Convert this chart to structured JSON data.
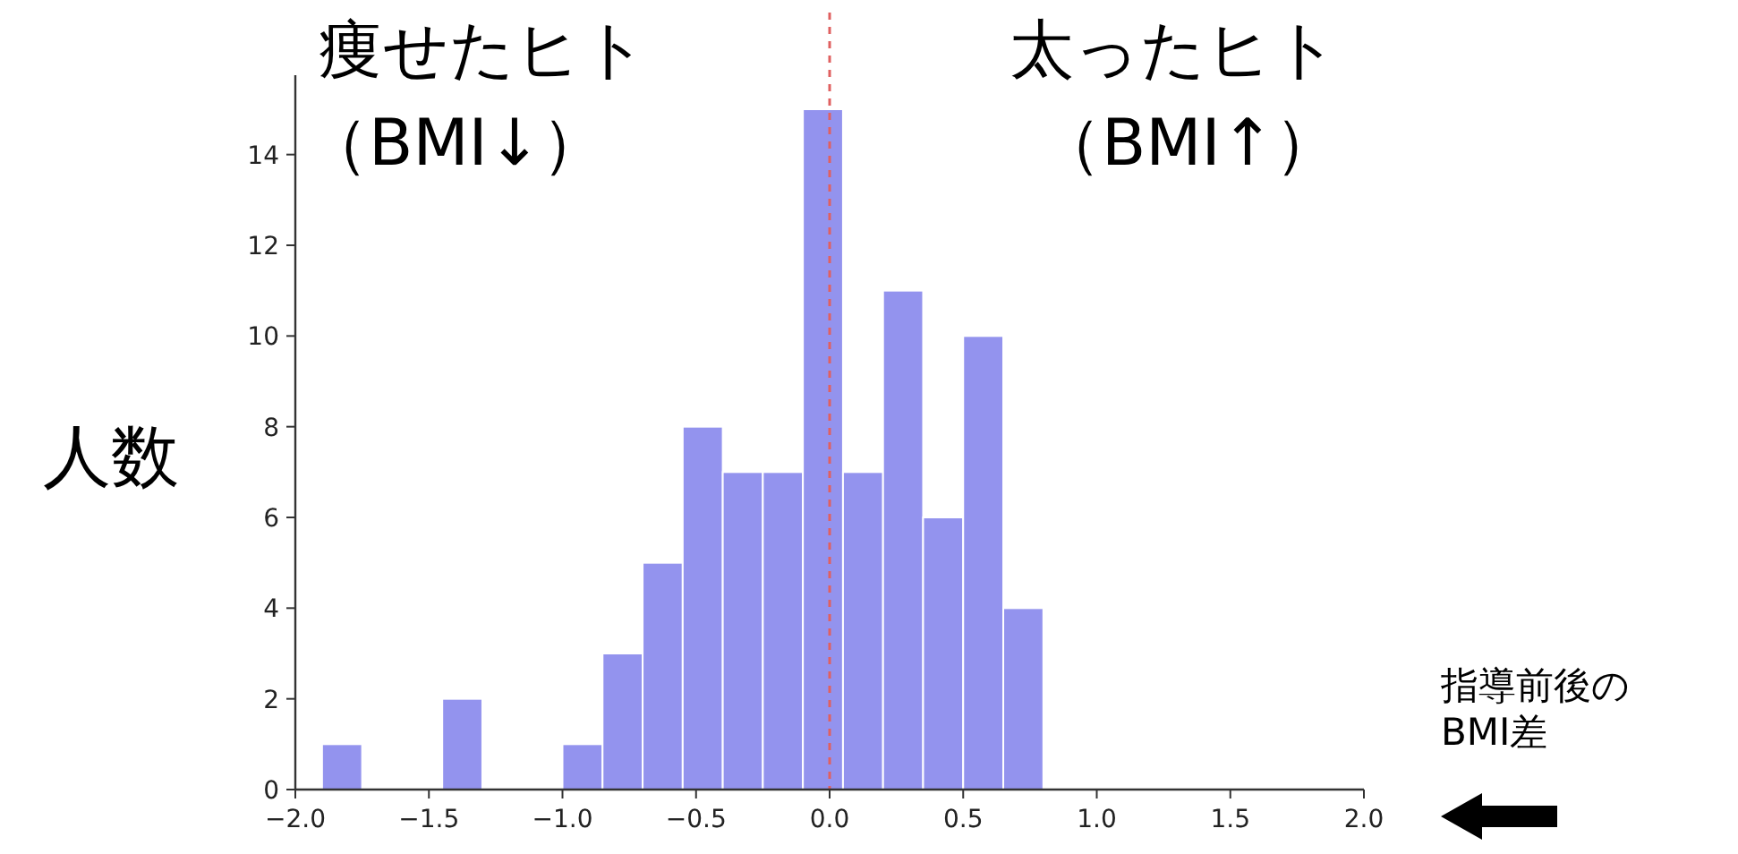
{
  "chart_data": {
    "type": "histogram",
    "xlabel": "指導前後のBMI差",
    "ylabel": "人数",
    "annotations": [
      "痩せたヒト",
      "（BMI↓）",
      "太ったヒト",
      "（BMI↑）"
    ],
    "bins": [
      -1.9,
      -1.75,
      -1.6,
      -1.45,
      -1.3,
      -1.15,
      -1.0,
      -0.85,
      -0.7,
      -0.55,
      -0.4,
      -0.25,
      -0.1,
      0.05,
      0.2,
      0.35,
      0.5,
      0.65,
      0.8
    ],
    "values": [
      1,
      0,
      0,
      2,
      0,
      0,
      1,
      3,
      5,
      8,
      7,
      7,
      15,
      7,
      11,
      6,
      10,
      4
    ],
    "color": "#9393ee",
    "xlim": [
      -2.0,
      2.0
    ],
    "ylim": [
      0,
      15.75
    ],
    "xticks": [
      {
        "value": -2.0,
        "label": "−2.0"
      },
      {
        "value": -1.5,
        "label": "−1.5"
      },
      {
        "value": -1.0,
        "label": "−1.0"
      },
      {
        "value": -0.5,
        "label": "−0.5"
      },
      {
        "value": 0,
        "label": "0.0"
      },
      {
        "value": 0.5,
        "label": "0.5"
      },
      {
        "value": 1.0,
        "label": "1.0"
      },
      {
        "value": 1.5,
        "label": "1.5"
      },
      {
        "value": 2.0,
        "label": "2.0"
      }
    ],
    "yticks": [
      0,
      2,
      4,
      6,
      8,
      10,
      12,
      14
    ],
    "ref_lines": [
      {
        "axis": "x",
        "value": 0,
        "color": "#e06060",
        "line_style": "dashed"
      }
    ]
  }
}
